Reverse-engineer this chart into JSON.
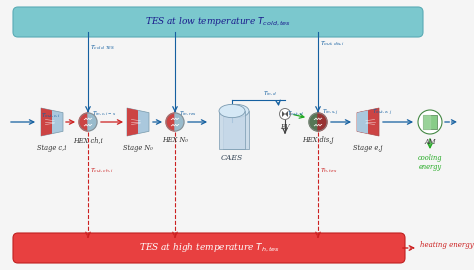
{
  "bg_color": "#f5f5f5",
  "tes_cold_color": "#7BC8CE",
  "tes_cold_edge": "#5AABB5",
  "tes_hot_color": "#E84040",
  "tes_hot_edge": "#C02020",
  "blue": "#1560A0",
  "red": "#CC2020",
  "green": "#22AA22",
  "darkblue": "#1a1a8c",
  "gray_edge": "#888888",
  "trap_red": "#CC4444",
  "trap_blue": "#AAC8DD",
  "hex_red": "#CC4444",
  "hex_blue": "#99BBCC",
  "hex_green": "#669966",
  "caes_fill": "#C5D8E8",
  "caes_edge": "#7A9AB0",
  "am_fill": "#C8E8C8",
  "am_edge": "#44884",
  "ev_fill": "#ffffff",
  "ev_edge": "#777777",
  "stage_ci_text": "Stage c,i",
  "stage_nb_text": "Stage N₀",
  "hex_chi_text": "HEX ch,i",
  "hex_nb_text": "HEX N₀",
  "hex_disj_text": "HEX dis,j",
  "stage_ej_text": "Stage e,j",
  "caes_text": "CAES",
  "ev_text": "EV",
  "am_text": "AM",
  "cooling_text": "cooling\nenergy",
  "heating_text": "heating energy",
  "tes_cold_label": "TES at low temperature $T_{cold,tes}$",
  "tes_hot_label": "TES at high temperature $T_{h,tes}$"
}
